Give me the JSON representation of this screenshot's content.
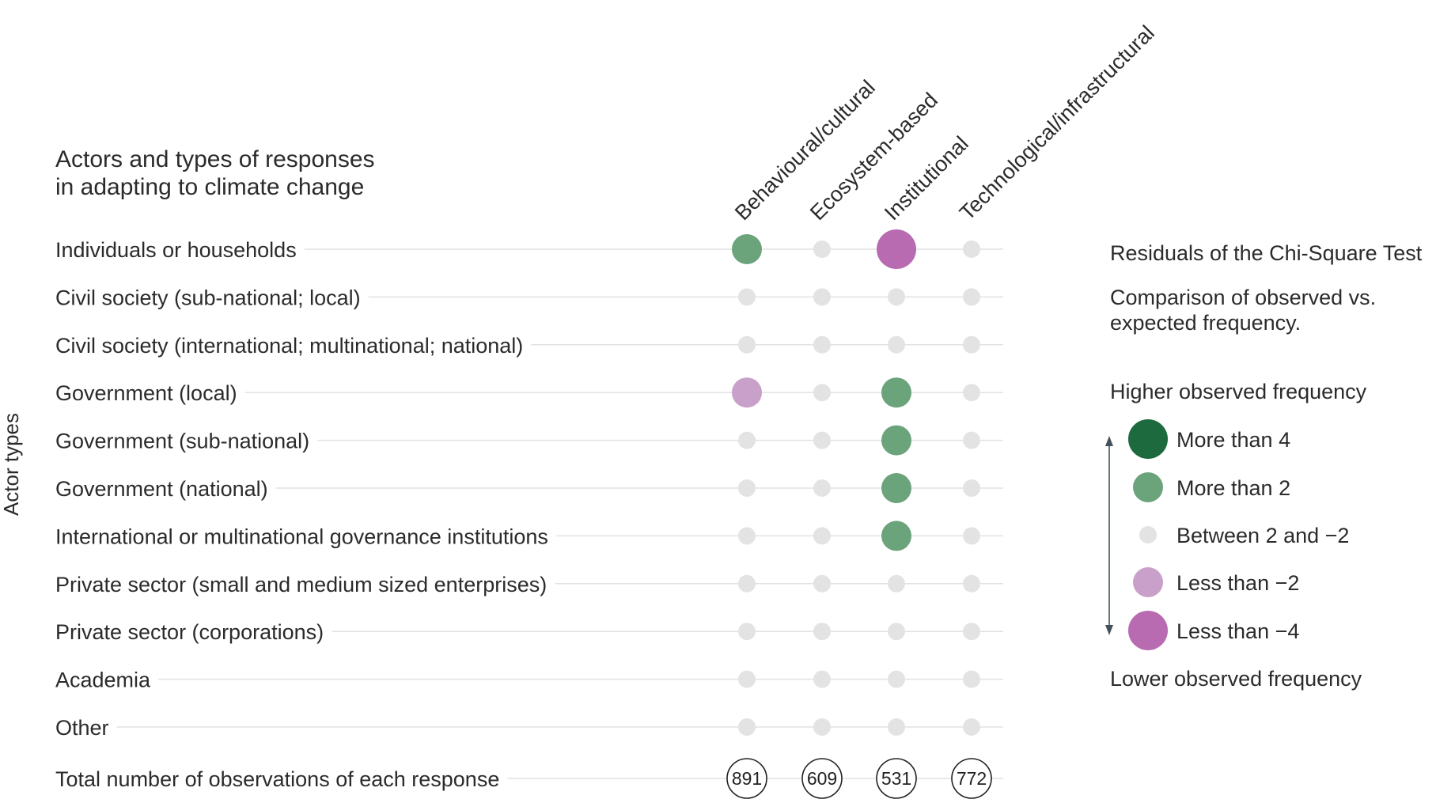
{
  "chart_data": {
    "type": "dot-matrix",
    "title_lines": [
      "Actors and types of responses",
      "in adapting to climate change"
    ],
    "y_axis_label": "Actor types",
    "columns": [
      "Behavioural/cultural",
      "Ecosystem-based",
      "Institutional",
      "Technological/infrastructural"
    ],
    "rows": [
      "Individuals or households",
      "Civil society (sub-national; local)",
      "Civil society (international; multinational; national)",
      "Government (local)",
      "Government (sub-national)",
      "Government (national)",
      "International or multinational governance institutions",
      "Private sector (small and medium sized enterprises)",
      "Private sector (corporations)",
      "Academia",
      "Other"
    ],
    "residual_categories": [
      [
        ">2",
        "between",
        "<-4",
        "between"
      ],
      [
        "between",
        "between",
        "between",
        "between"
      ],
      [
        "between",
        "between",
        "between",
        "between"
      ],
      [
        "<-2",
        "between",
        ">2",
        "between"
      ],
      [
        "between",
        "between",
        ">2",
        "between"
      ],
      [
        "between",
        "between",
        ">2",
        "between"
      ],
      [
        "between",
        "between",
        ">2",
        "between"
      ],
      [
        "between",
        "between",
        "between",
        "between"
      ],
      [
        "between",
        "between",
        "between",
        "between"
      ],
      [
        "between",
        "between",
        "between",
        "between"
      ],
      [
        "between",
        "between",
        "between",
        "between"
      ]
    ],
    "totals_label": "Total number of observations of each response",
    "totals": [
      891,
      609,
      531,
      772
    ],
    "legend": {
      "title": "Residuals of the Chi-Square Test",
      "subtitle_lines": [
        "Comparison of observed vs.",
        "expected frequency."
      ],
      "higher_label": "Higher observed frequency",
      "lower_label": "Lower observed frequency",
      "items": [
        {
          "key": ">4",
          "label": "More than 4",
          "color": "#1c6a3e"
        },
        {
          "key": ">2",
          "label": "More than 2",
          "color": "#6ba37b"
        },
        {
          "key": "between",
          "label": "Between 2 and −2",
          "color": "#e3e3e3"
        },
        {
          "key": "<-2",
          "label": "Less than −2",
          "color": "#c9a0c9"
        },
        {
          "key": "<-4",
          "label": "Less than −4",
          "color": "#b86bb0"
        }
      ]
    }
  }
}
